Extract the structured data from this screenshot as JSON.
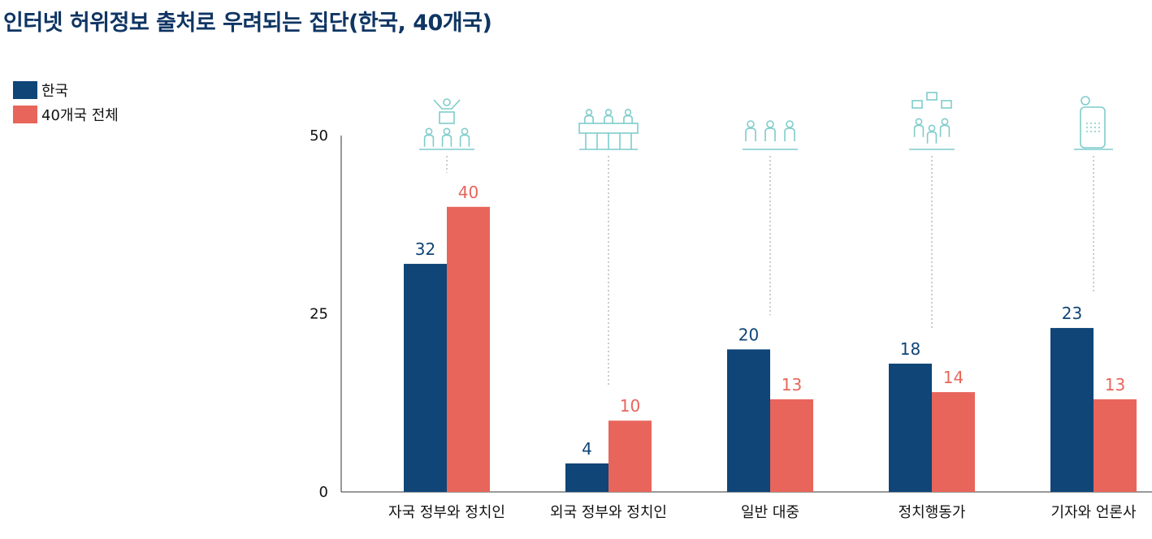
{
  "title": "인터넷 허위정보 출처로 우려되는 집단(한국, 40개국)",
  "colors": {
    "korea": "#0f4577",
    "all": "#e8655b",
    "icon": "#7fcccb",
    "axis": "#333333"
  },
  "chart_data": {
    "type": "bar",
    "categories": [
      "자국 정부와 정치인",
      "외국 정부와 정치인",
      "일반 대중",
      "정치행동가",
      "기자와 언론사"
    ],
    "category_icons": [
      "politician-podium-icon",
      "foreign-delegation-table-icon",
      "general-public-icon",
      "activists-signs-icon",
      "journalist-press-icon"
    ],
    "series": [
      {
        "name": "한국",
        "values": [
          32,
          4,
          20,
          18,
          23
        ]
      },
      {
        "name": "40개국 전체",
        "values": [
          40,
          10,
          13,
          14,
          13
        ]
      }
    ],
    "yticks": [
      0,
      25,
      50
    ],
    "ylim": [
      0,
      50
    ],
    "legend_position": "top-left"
  }
}
